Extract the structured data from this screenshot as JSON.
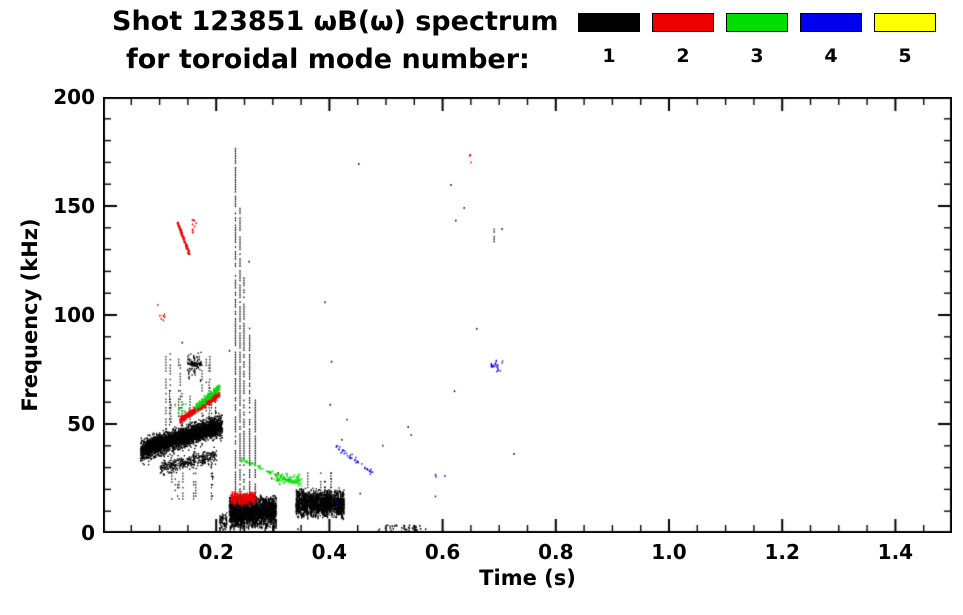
{
  "title": {
    "line1": "Shot 123851 ωB(ω) spectrum",
    "line2": "for toroidal mode number:"
  },
  "chart_data": {
    "type": "scatter",
    "title": "Shot 123851 ωB(ω) spectrum for toroidal mode number: 1 2 3 4 5",
    "xlabel": "Time (s)",
    "ylabel": "Frequency (kHz)",
    "xlim": [
      0,
      1.5
    ],
    "ylim": [
      0,
      200
    ],
    "xticks": [
      0.2,
      0.4,
      0.6,
      0.8,
      1.0,
      1.2,
      1.4
    ],
    "xtick_labels": [
      "0.2",
      "0.4",
      "0.6",
      "0.8",
      "1.0",
      "1.2",
      "1.4"
    ],
    "yticks": [
      0,
      50,
      100,
      150,
      200
    ],
    "ytick_labels": [
      "0",
      "50",
      "100",
      "150",
      "200"
    ],
    "x_minor_step": 0.05,
    "y_minor_step": 10,
    "grid": false,
    "legend_position": "top-right",
    "series": [
      {
        "mode": 1,
        "name": "n=1",
        "label": "1",
        "color": "#000000"
      },
      {
        "mode": 2,
        "name": "n=2",
        "label": "2",
        "color": "#ee0000"
      },
      {
        "mode": 3,
        "name": "n=3",
        "label": "3",
        "color": "#00dd00"
      },
      {
        "mode": 4,
        "name": "n=4",
        "label": "4",
        "color": "#0000ee"
      },
      {
        "mode": 5,
        "name": "n=5",
        "label": "5",
        "color": "#ffff00"
      }
    ],
    "clusters": [
      {
        "mode": 1,
        "type": "band",
        "t0": 0.065,
        "t1": 0.21,
        "f0": 38,
        "f1": 50,
        "spread": 6,
        "count": 2400
      },
      {
        "mode": 1,
        "type": "band",
        "t0": 0.075,
        "t1": 0.2,
        "f0": 40,
        "f1": 48,
        "spread": 3,
        "count": 1600
      },
      {
        "mode": 1,
        "type": "band",
        "t0": 0.1,
        "t1": 0.2,
        "f0": 30,
        "f1": 36,
        "spread": 4,
        "count": 350
      },
      {
        "mode": 1,
        "type": "vstreaks",
        "t0": 0.1,
        "t1": 0.2,
        "fb": 50,
        "ft": 84,
        "n": 14
      },
      {
        "mode": 1,
        "type": "vstreaks",
        "t0": 0.12,
        "t1": 0.2,
        "fb": 16,
        "ft": 34,
        "n": 9
      },
      {
        "mode": 1,
        "type": "blob",
        "t0": 0.148,
        "t1": 0.172,
        "f0": 70,
        "f1": 84,
        "count": 90
      },
      {
        "mode": 1,
        "type": "spike",
        "t": 0.233,
        "f0": 4,
        "f1": 177
      },
      {
        "mode": 1,
        "type": "spike",
        "t": 0.241,
        "f0": 4,
        "f1": 150
      },
      {
        "mode": 1,
        "type": "spike",
        "t": 0.248,
        "f0": 4,
        "f1": 118
      },
      {
        "mode": 1,
        "type": "spike",
        "t": 0.258,
        "f0": 4,
        "f1": 95
      },
      {
        "mode": 1,
        "type": "spike",
        "t": 0.268,
        "f0": 4,
        "f1": 62
      },
      {
        "mode": 1,
        "type": "blob",
        "t0": 0.222,
        "t1": 0.305,
        "f0": 2,
        "f1": 18,
        "count": 2000
      },
      {
        "mode": 1,
        "type": "blob",
        "t0": 0.205,
        "t1": 0.218,
        "f0": 0,
        "f1": 10,
        "count": 60
      },
      {
        "mode": 1,
        "type": "blob",
        "t0": 0.34,
        "t1": 0.425,
        "f0": 7,
        "f1": 21,
        "count": 1500
      },
      {
        "mode": 1,
        "type": "vstreaks",
        "t0": 0.345,
        "t1": 0.415,
        "fb": 20,
        "ft": 30,
        "n": 6
      },
      {
        "mode": 1,
        "type": "scatter",
        "t0": 0.48,
        "t1": 0.57,
        "f0": 0,
        "f1": 4,
        "count": 45
      },
      {
        "mode": 1,
        "type": "scatter",
        "t0": 0.1,
        "t1": 0.75,
        "f0": 2,
        "f1": 175,
        "count": 22
      },
      {
        "mode": 1,
        "type": "spike",
        "t": 0.69,
        "f0": 133,
        "f1": 141
      },
      {
        "mode": 2,
        "type": "band",
        "t0": 0.13,
        "t1": 0.152,
        "f0": 143,
        "f1": 128,
        "spread": 1.5,
        "count": 120
      },
      {
        "mode": 2,
        "type": "scatter",
        "t0": 0.154,
        "t1": 0.165,
        "f0": 136,
        "f1": 146,
        "count": 10
      },
      {
        "mode": 2,
        "type": "band",
        "t0": 0.135,
        "t1": 0.205,
        "f0": 52,
        "f1": 64,
        "spread": 1.8,
        "count": 650
      },
      {
        "mode": 2,
        "type": "blob",
        "t0": 0.225,
        "t1": 0.27,
        "f0": 13,
        "f1": 20,
        "count": 260
      },
      {
        "mode": 2,
        "type": "scatter",
        "t0": 0.09,
        "t1": 0.115,
        "f0": 97,
        "f1": 106,
        "count": 7
      },
      {
        "mode": 2,
        "type": "scatter",
        "t0": 0.645,
        "t1": 0.66,
        "f0": 170,
        "f1": 174,
        "count": 4
      },
      {
        "mode": 3,
        "type": "band",
        "t0": 0.163,
        "t1": 0.205,
        "f0": 58,
        "f1": 67,
        "spread": 2,
        "count": 220
      },
      {
        "mode": 3,
        "type": "band",
        "t0": 0.243,
        "t1": 0.35,
        "f0": 34,
        "f1": 22,
        "spread": 1.3,
        "count": 110
      },
      {
        "mode": 3,
        "type": "blob",
        "t0": 0.3,
        "t1": 0.35,
        "f0": 22,
        "f1": 28,
        "count": 70
      },
      {
        "mode": 3,
        "type": "scatter",
        "t0": 0.125,
        "t1": 0.155,
        "f0": 55,
        "f1": 60,
        "count": 12
      },
      {
        "mode": 4,
        "type": "band",
        "t0": 0.41,
        "t1": 0.475,
        "f0": 40,
        "f1": 28,
        "spread": 1.5,
        "count": 45
      },
      {
        "mode": 4,
        "type": "blob",
        "t0": 0.685,
        "t1": 0.705,
        "f0": 74,
        "f1": 80,
        "count": 22
      },
      {
        "mode": 4,
        "type": "scatter",
        "t0": 0.3,
        "t1": 0.62,
        "f0": 0,
        "f1": 55,
        "count": 10
      }
    ]
  }
}
